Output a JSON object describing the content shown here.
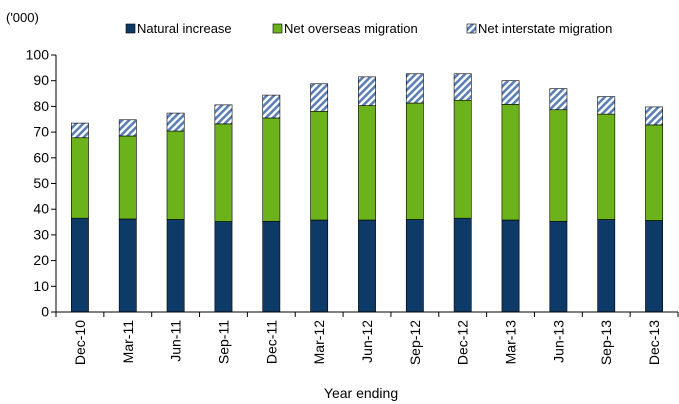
{
  "chart_data": {
    "type": "bar",
    "stacked": true,
    "unit_label": "('000)",
    "xlabel": "Year ending",
    "ylabel": "",
    "ylim": [
      0,
      100
    ],
    "yticks": [
      0,
      10,
      20,
      30,
      40,
      50,
      60,
      70,
      80,
      90,
      100
    ],
    "grid": false,
    "legend_position": "top",
    "categories": [
      "Dec-10",
      "Mar-11",
      "Jun-11",
      "Sep-11",
      "Dec-11",
      "Mar-12",
      "Jun-12",
      "Sep-12",
      "Dec-12",
      "Mar-13",
      "Jun-13",
      "Sep-13",
      "Dec-13"
    ],
    "series": [
      {
        "name": "Natural increase",
        "color": "#0d3a66",
        "pattern": "solid",
        "values": [
          36.5,
          36.2,
          36.0,
          35.2,
          35.3,
          35.8,
          35.8,
          36.0,
          36.5,
          35.8,
          35.3,
          36.0,
          35.6
        ]
      },
      {
        "name": "Net overseas migration",
        "color": "#6cb21a",
        "pattern": "solid",
        "values": [
          31.3,
          32.3,
          34.4,
          38.0,
          40.2,
          42.3,
          44.5,
          45.3,
          45.9,
          45.0,
          43.4,
          41.0,
          37.2
        ]
      },
      {
        "name": "Net interstate migration",
        "color": "#5b7fb5",
        "pattern": "diagonal-hatch",
        "values": [
          5.7,
          6.3,
          7.0,
          7.4,
          8.9,
          10.7,
          11.2,
          11.4,
          10.3,
          9.2,
          8.2,
          6.8,
          7.0
        ]
      }
    ]
  }
}
